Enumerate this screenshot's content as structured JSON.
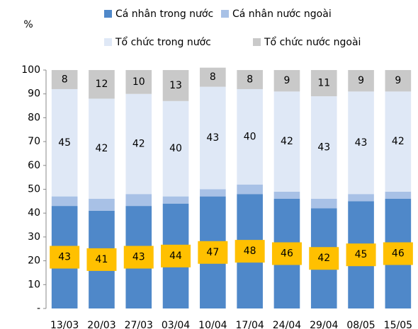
{
  "chart_data": {
    "type": "stacked_bar",
    "y_axis_label": "%",
    "categories": [
      "13/03",
      "20/03",
      "27/03",
      "03/04",
      "10/04",
      "17/04",
      "24/04",
      "29/04",
      "08/05",
      "15/05"
    ],
    "series": [
      {
        "name": "Cá nhân trong nước",
        "color": "#4f88c9",
        "values": [
          43,
          41,
          43,
          44,
          47,
          48,
          46,
          42,
          45,
          46
        ],
        "show_labels": true,
        "label_box": "#ffc000"
      },
      {
        "name": "Cá nhân nước ngoài",
        "color": "#a8c1e6",
        "values": [
          4,
          5,
          5,
          3,
          3,
          4,
          3,
          4,
          3,
          3
        ],
        "show_labels": false
      },
      {
        "name": "Tổ chức trong nước",
        "color": "#dfe8f6",
        "values": [
          45,
          42,
          42,
          40,
          43,
          40,
          42,
          43,
          43,
          42
        ],
        "show_labels": true
      },
      {
        "name": "Tổ chức nước ngoài",
        "color": "#c9c9c9",
        "values": [
          8,
          12,
          10,
          13,
          8,
          8,
          9,
          11,
          9,
          9
        ],
        "show_labels": true
      }
    ],
    "ylim": [
      0,
      100
    ],
    "yticks": [
      {
        "value": 0,
        "label": "-"
      },
      10,
      20,
      30,
      40,
      50,
      60,
      70,
      80,
      90,
      100
    ],
    "grid": false
  }
}
